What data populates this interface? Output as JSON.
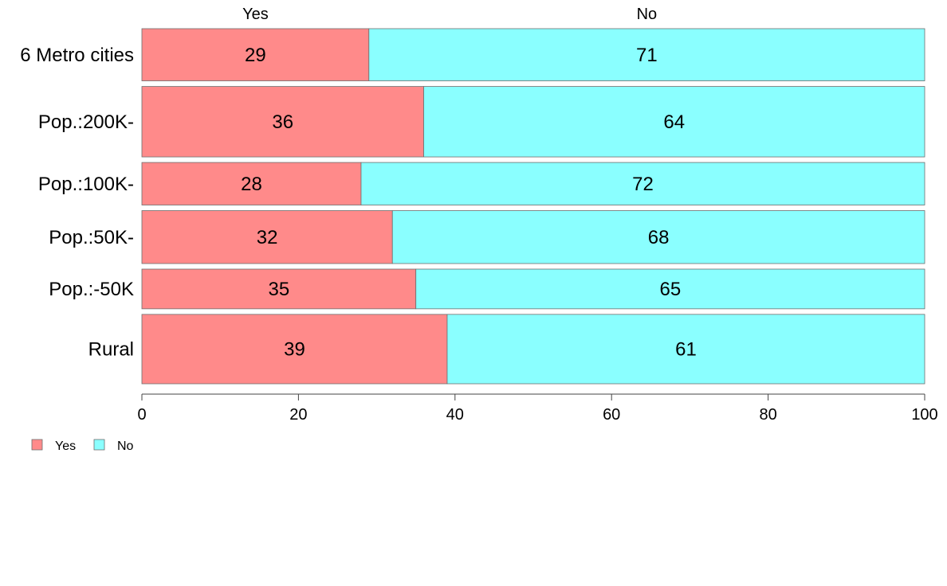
{
  "chart_data": {
    "type": "bar",
    "orientation": "horizontal",
    "stacked": true,
    "categories": [
      "6 Metro cities",
      "Pop.:200K-",
      "Pop.:100K-",
      "Pop.:50K-",
      "Pop.:-50K",
      "Rural"
    ],
    "series": [
      {
        "name": "Yes",
        "values": [
          29,
          36,
          28,
          32,
          35,
          39
        ],
        "color": "#ff8a8a"
      },
      {
        "name": "No",
        "values": [
          71,
          64,
          72,
          68,
          65,
          61
        ],
        "color": "#8affff"
      }
    ],
    "weights": [
      0.146,
      0.197,
      0.119,
      0.148,
      0.111,
      0.194
    ],
    "top_labels": [
      "Yes",
      "No"
    ],
    "xlim": [
      0,
      100
    ],
    "xticks": [
      0,
      20,
      40,
      60,
      80,
      100
    ],
    "legend": {
      "placement": "bottom-left",
      "entries": [
        "Yes",
        "No"
      ]
    },
    "grid": false,
    "title": "",
    "xlabel": "",
    "ylabel": ""
  }
}
